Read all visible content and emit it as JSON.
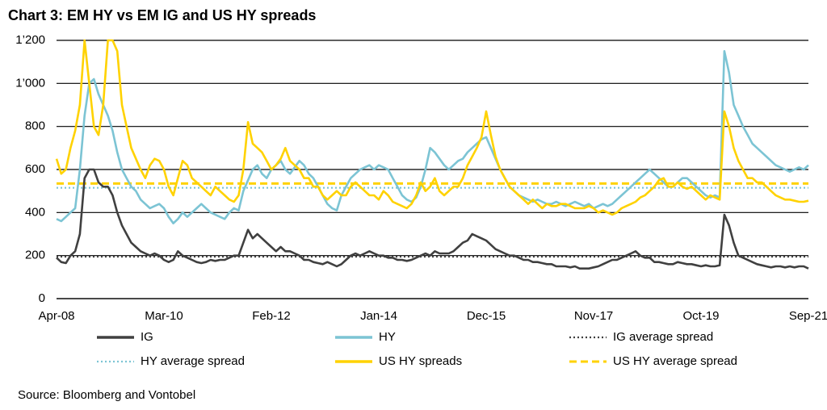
{
  "chart_data": {
    "type": "line",
    "title": "Chart 3: EM HY vs EM IG and US HY spreads",
    "source": "Source: Bloomberg and Vontobel",
    "categories": [
      "Apr-08",
      null,
      null,
      null,
      null,
      null,
      null,
      null,
      null,
      null,
      null,
      null,
      null,
      null,
      null,
      null,
      null,
      null,
      null,
      null,
      null,
      null,
      null,
      "Mar-10",
      null,
      null,
      null,
      null,
      null,
      null,
      null,
      null,
      null,
      null,
      null,
      null,
      null,
      null,
      null,
      null,
      null,
      null,
      null,
      null,
      null,
      null,
      "Feb-12",
      null,
      null,
      null,
      null,
      null,
      null,
      null,
      null,
      null,
      null,
      null,
      null,
      null,
      null,
      null,
      null,
      null,
      null,
      null,
      null,
      null,
      null,
      "Jan-14",
      null,
      null,
      null,
      null,
      null,
      null,
      null,
      null,
      null,
      null,
      null,
      null,
      null,
      null,
      null,
      null,
      null,
      null,
      null,
      null,
      null,
      null,
      "Dec-15",
      null,
      null,
      null,
      null,
      null,
      null,
      null,
      null,
      null,
      null,
      null,
      null,
      null,
      null,
      null,
      null,
      null,
      null,
      null,
      null,
      null,
      null,
      "Nov-17",
      null,
      null,
      null,
      null,
      null,
      null,
      null,
      null,
      null,
      null,
      null,
      null,
      null,
      null,
      null,
      null,
      null,
      null,
      null,
      null,
      null,
      null,
      "Oct-19",
      null,
      null,
      null,
      null,
      null,
      null,
      null,
      null,
      null,
      null,
      null,
      null,
      null,
      null,
      null,
      null,
      null,
      null,
      null,
      null,
      null,
      null,
      "Sep-21"
    ],
    "ylim": [
      0,
      1200
    ],
    "yticks": [
      0,
      200,
      400,
      600,
      800,
      {
        "value": 1000,
        "label": "1’000"
      },
      {
        "value": 1200,
        "label": "1’200"
      }
    ],
    "grid": true,
    "series": [
      {
        "name": "IG",
        "color": "#404040",
        "values": [
          190,
          170,
          165,
          200,
          220,
          300,
          560,
          600,
          600,
          540,
          520,
          520,
          480,
          400,
          340,
          300,
          260,
          240,
          220,
          210,
          200,
          210,
          200,
          180,
          170,
          180,
          220,
          200,
          190,
          180,
          170,
          165,
          170,
          180,
          175,
          180,
          180,
          190,
          200,
          200,
          260,
          320,
          280,
          300,
          280,
          260,
          240,
          220,
          240,
          220,
          220,
          210,
          200,
          180,
          180,
          170,
          165,
          160,
          170,
          160,
          150,
          160,
          180,
          200,
          210,
          200,
          210,
          220,
          210,
          200,
          200,
          190,
          190,
          180,
          180,
          175,
          180,
          190,
          200,
          210,
          200,
          220,
          210,
          210,
          210,
          220,
          240,
          260,
          270,
          300,
          290,
          280,
          270,
          250,
          230,
          220,
          210,
          200,
          200,
          190,
          180,
          180,
          170,
          170,
          165,
          160,
          160,
          150,
          150,
          150,
          145,
          150,
          140,
          140,
          140,
          145,
          150,
          160,
          170,
          180,
          180,
          190,
          200,
          210,
          220,
          200,
          190,
          190,
          170,
          170,
          165,
          160,
          160,
          170,
          165,
          160,
          160,
          155,
          150,
          155,
          150,
          150,
          155,
          390,
          340,
          260,
          200,
          190,
          180,
          170,
          160,
          155,
          150,
          145,
          150,
          150,
          145,
          150,
          145,
          150,
          150,
          140
        ]
      },
      {
        "name": "HY",
        "color": "#7cc4d4",
        "values": [
          370,
          360,
          380,
          400,
          420,
          600,
          850,
          1000,
          1020,
          950,
          900,
          850,
          780,
          680,
          600,
          560,
          520,
          500,
          460,
          440,
          420,
          430,
          440,
          420,
          380,
          350,
          370,
          400,
          380,
          400,
          420,
          440,
          420,
          400,
          390,
          380,
          370,
          400,
          420,
          410,
          500,
          550,
          600,
          620,
          580,
          560,
          600,
          620,
          640,
          600,
          580,
          610,
          640,
          620,
          580,
          560,
          520,
          480,
          440,
          420,
          410,
          480,
          520,
          560,
          580,
          600,
          610,
          620,
          600,
          620,
          610,
          600,
          560,
          520,
          480,
          460,
          450,
          470,
          520,
          600,
          700,
          680,
          650,
          620,
          600,
          620,
          640,
          650,
          680,
          700,
          720,
          740,
          750,
          700,
          650,
          600,
          560,
          520,
          500,
          480,
          470,
          460,
          450,
          460,
          450,
          440,
          440,
          450,
          440,
          430,
          440,
          450,
          440,
          430,
          440,
          420,
          430,
          440,
          430,
          440,
          460,
          480,
          500,
          520,
          540,
          560,
          580,
          600,
          580,
          560,
          540,
          520,
          520,
          540,
          560,
          560,
          540,
          520,
          500,
          480,
          470,
          480,
          470,
          1150,
          1050,
          900,
          850,
          800,
          760,
          720,
          700,
          680,
          660,
          640,
          620,
          610,
          600,
          590,
          600,
          610,
          600,
          620
        ]
      },
      {
        "name": "IG average spread",
        "color": "#404040",
        "style": "dotted",
        "value": 195
      },
      {
        "name": "HY average spread",
        "color": "#7cc4d4",
        "style": "dotted",
        "value": 515
      },
      {
        "name": "US HY spreads",
        "color": "#ffd200",
        "values": [
          650,
          580,
          600,
          700,
          780,
          900,
          1200,
          1000,
          800,
          760,
          900,
          1200,
          1200,
          1150,
          900,
          800,
          700,
          650,
          600,
          560,
          620,
          650,
          640,
          600,
          520,
          480,
          560,
          640,
          620,
          560,
          540,
          520,
          500,
          480,
          520,
          500,
          480,
          460,
          450,
          480,
          600,
          820,
          720,
          700,
          680,
          640,
          600,
          620,
          650,
          700,
          640,
          620,
          600,
          560,
          560,
          520,
          520,
          480,
          460,
          480,
          500,
          480,
          480,
          520,
          540,
          520,
          500,
          480,
          480,
          460,
          500,
          480,
          450,
          440,
          430,
          420,
          440,
          480,
          540,
          500,
          520,
          560,
          500,
          480,
          500,
          520,
          520,
          560,
          620,
          660,
          700,
          750,
          870,
          760,
          660,
          600,
          560,
          520,
          500,
          480,
          460,
          440,
          460,
          440,
          420,
          440,
          430,
          430,
          440,
          440,
          430,
          420,
          420,
          420,
          430,
          420,
          400,
          410,
          400,
          390,
          400,
          420,
          430,
          440,
          450,
          470,
          480,
          500,
          520,
          550,
          560,
          520,
          520,
          540,
          520,
          510,
          520,
          500,
          480,
          460,
          480,
          470,
          460,
          870,
          800,
          700,
          640,
          600,
          560,
          560,
          540,
          540,
          520,
          500,
          480,
          470,
          460,
          460,
          455,
          450,
          450,
          455
        ]
      },
      {
        "name": "US HY average spread",
        "color": "#ffd200",
        "style": "dashed",
        "value": 535
      }
    ]
  }
}
